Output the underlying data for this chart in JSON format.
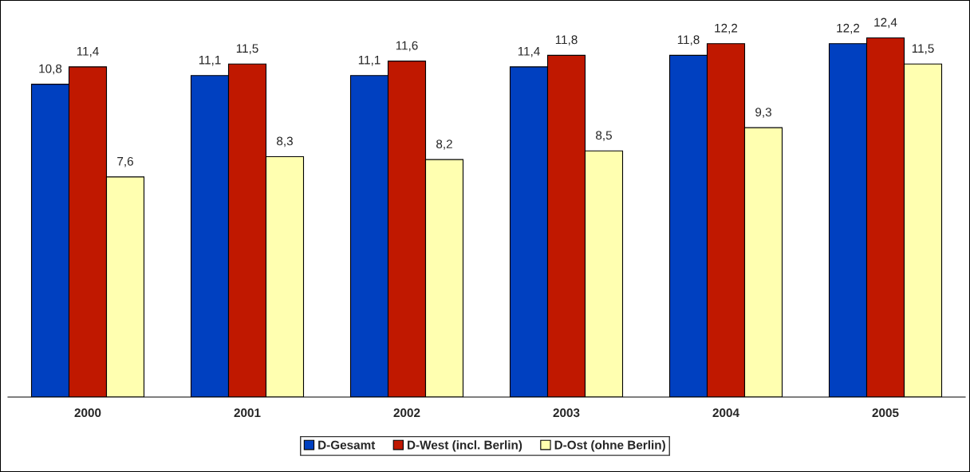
{
  "chart_data": {
    "type": "bar",
    "categories": [
      "2000",
      "2001",
      "2002",
      "2003",
      "2004",
      "2005"
    ],
    "series": [
      {
        "name": "D-Gesamt",
        "color": "#0040c0",
        "values": [
          10.8,
          11.1,
          11.1,
          11.4,
          11.8,
          12.2
        ],
        "value_labels": [
          "10,8",
          "11,1",
          "11,1",
          "11,4",
          "11,8",
          "12,2"
        ]
      },
      {
        "name": "D-West (incl. Berlin)",
        "color": "#c01800",
        "values": [
          11.4,
          11.5,
          11.6,
          11.8,
          12.2,
          12.4
        ],
        "value_labels": [
          "11,4",
          "11,5",
          "11,6",
          "11,8",
          "12,2",
          "12,4"
        ]
      },
      {
        "name": "D-Ost (ohne Berlin)",
        "color": "#ffffb0",
        "values": [
          7.6,
          8.3,
          8.2,
          8.5,
          9.3,
          11.5
        ],
        "value_labels": [
          "7,6",
          "8,3",
          "8,2",
          "8,5",
          "9,3",
          "11,5"
        ]
      }
    ],
    "tick_labels": "x",
    "legend": "bottom",
    "grid": false
  }
}
